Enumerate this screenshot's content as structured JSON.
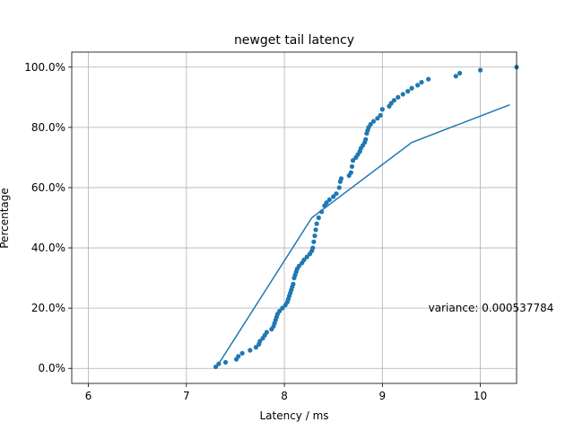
{
  "chart_data": {
    "type": "scatter",
    "title": "newget tail latency",
    "xlabel": "Latency / ms",
    "ylabel": "Percentage",
    "xlim": [
      5.83,
      10.37
    ],
    "ylim": [
      -0.05,
      1.05
    ],
    "grid": true,
    "xticks": [
      6,
      7,
      8,
      9,
      10
    ],
    "xtick_labels": [
      "6",
      "7",
      "8",
      "9",
      "10"
    ],
    "yticks": [
      0.0,
      0.2,
      0.4,
      0.6,
      0.8,
      1.0
    ],
    "ytick_labels": [
      "0.0%",
      "20.0%",
      "40.0%",
      "60.0%",
      "80.0%",
      "100.0%"
    ],
    "annotation": {
      "text": "variance: 0.000537784",
      "x": 9.47,
      "y": 0.2
    },
    "points": [
      [
        7.3,
        0.005
      ],
      [
        7.33,
        0.015
      ],
      [
        7.4,
        0.02
      ],
      [
        7.51,
        0.03
      ],
      [
        7.53,
        0.04
      ],
      [
        7.57,
        0.05
      ],
      [
        7.65,
        0.06
      ],
      [
        7.71,
        0.07
      ],
      [
        7.74,
        0.08
      ],
      [
        7.75,
        0.09
      ],
      [
        7.78,
        0.1
      ],
      [
        7.8,
        0.11
      ],
      [
        7.82,
        0.12
      ],
      [
        7.87,
        0.13
      ],
      [
        7.89,
        0.14
      ],
      [
        7.9,
        0.15
      ],
      [
        7.91,
        0.16
      ],
      [
        7.92,
        0.17
      ],
      [
        7.93,
        0.18
      ],
      [
        7.95,
        0.19
      ],
      [
        7.98,
        0.2
      ],
      [
        8.01,
        0.21
      ],
      [
        8.03,
        0.22
      ],
      [
        8.04,
        0.23
      ],
      [
        8.05,
        0.24
      ],
      [
        8.06,
        0.25
      ],
      [
        8.07,
        0.26
      ],
      [
        8.08,
        0.27
      ],
      [
        8.09,
        0.28
      ],
      [
        8.1,
        0.3
      ],
      [
        8.11,
        0.31
      ],
      [
        8.12,
        0.32
      ],
      [
        8.13,
        0.33
      ],
      [
        8.15,
        0.34
      ],
      [
        8.18,
        0.35
      ],
      [
        8.2,
        0.36
      ],
      [
        8.23,
        0.37
      ],
      [
        8.26,
        0.38
      ],
      [
        8.28,
        0.39
      ],
      [
        8.29,
        0.4
      ],
      [
        8.3,
        0.42
      ],
      [
        8.31,
        0.44
      ],
      [
        8.32,
        0.46
      ],
      [
        8.33,
        0.48
      ],
      [
        8.35,
        0.5
      ],
      [
        8.38,
        0.52
      ],
      [
        8.41,
        0.54
      ],
      [
        8.43,
        0.55
      ],
      [
        8.46,
        0.56
      ],
      [
        8.5,
        0.57
      ],
      [
        8.53,
        0.58
      ],
      [
        8.56,
        0.6
      ],
      [
        8.57,
        0.62
      ],
      [
        8.58,
        0.63
      ],
      [
        8.66,
        0.64
      ],
      [
        8.68,
        0.65
      ],
      [
        8.69,
        0.67
      ],
      [
        8.7,
        0.69
      ],
      [
        8.73,
        0.7
      ],
      [
        8.75,
        0.71
      ],
      [
        8.77,
        0.72
      ],
      [
        8.78,
        0.73
      ],
      [
        8.8,
        0.74
      ],
      [
        8.82,
        0.75
      ],
      [
        8.83,
        0.76
      ],
      [
        8.84,
        0.78
      ],
      [
        8.85,
        0.79
      ],
      [
        8.86,
        0.8
      ],
      [
        8.88,
        0.81
      ],
      [
        8.91,
        0.82
      ],
      [
        8.95,
        0.83
      ],
      [
        8.98,
        0.84
      ],
      [
        9.0,
        0.86
      ],
      [
        9.07,
        0.87
      ],
      [
        9.09,
        0.88
      ],
      [
        9.12,
        0.89
      ],
      [
        9.16,
        0.9
      ],
      [
        9.21,
        0.91
      ],
      [
        9.26,
        0.92
      ],
      [
        9.3,
        0.93
      ],
      [
        9.36,
        0.94
      ],
      [
        9.4,
        0.95
      ],
      [
        9.47,
        0.96
      ],
      [
        9.75,
        0.97
      ],
      [
        9.79,
        0.98
      ],
      [
        10.0,
        0.99
      ],
      [
        10.37,
        1.0
      ]
    ],
    "line": [
      [
        7.3,
        0.0
      ],
      [
        8.28,
        0.5
      ],
      [
        9.3,
        0.75
      ],
      [
        10.3,
        0.875
      ]
    ],
    "colors": {
      "series": "#1f77b4",
      "grid": "#b0b0b0"
    }
  }
}
